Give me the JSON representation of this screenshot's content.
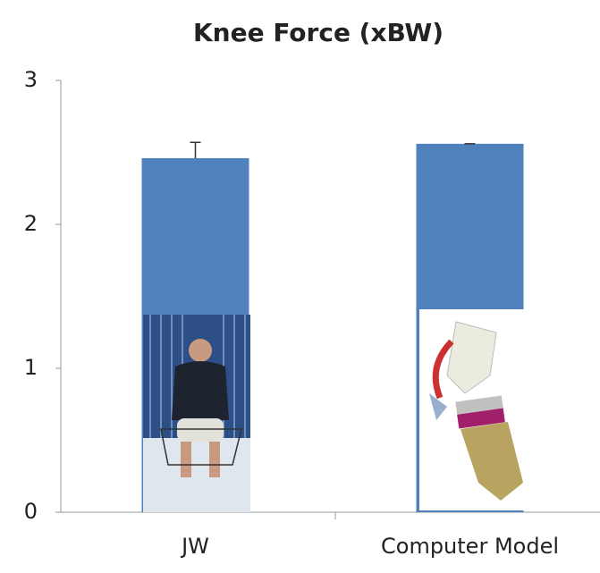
{
  "chart_data": {
    "type": "bar",
    "title": "Knee Force (xBW)",
    "categories": [
      "JW",
      "Computer Model"
    ],
    "values": [
      2.46,
      2.56
    ],
    "errors": [
      0.11,
      0
    ],
    "color": "#4f81bd",
    "ylim": [
      0,
      3
    ],
    "yticks": [
      0,
      1,
      2,
      3
    ],
    "grid": false
  }
}
